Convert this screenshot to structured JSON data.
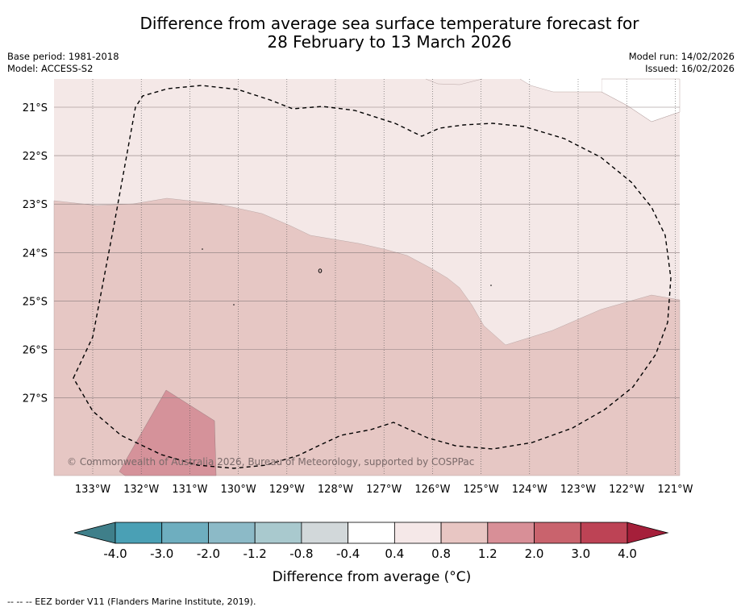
{
  "title_line1": "Difference from average sea surface temperature forecast for",
  "title_line2": "28 February to 13 March 2026",
  "base_period": "Base period: 1981-2018",
  "model": "Model: ACCESS-S2",
  "model_run": "Model run: 14/02/2026",
  "issued": "Issued: 16/02/2026",
  "copyright": "© Commonwealth of Australia 2026, Bureau of Meteorology, supported by COSPPac",
  "lon_labels": [
    "133°W",
    "132°W",
    "131°W",
    "130°W",
    "129°W",
    "128°W",
    "127°W",
    "126°W",
    "125°W",
    "124°W",
    "123°W",
    "122°W",
    "121°W"
  ],
  "lat_labels": [
    "21°S",
    "22°S",
    "23°S",
    "24°S",
    "25°S",
    "26°S",
    "27°S"
  ],
  "colorbar": {
    "label": "Difference from average (°C)",
    "ticks": [
      "-4.0",
      "-3.0",
      "-2.0",
      "-1.2",
      "-0.8",
      "-0.4",
      "0.4",
      "0.8",
      "1.2",
      "2.0",
      "3.0",
      "4.0"
    ],
    "colors": [
      "#4aa0b5",
      "#6eaebf",
      "#8cbac7",
      "#a9c9ce",
      "#d2d8da",
      "#ffffff",
      "#f5e8e8",
      "#e8c6c3",
      "#d88f97",
      "#c9636d",
      "#bd4355"
    ],
    "under_color": "#3f7f8a",
    "over_color": "#a51f3a"
  },
  "map_colors": {
    "light": "#f4e8e7",
    "medium": "#e6c7c4",
    "strong": "#d5929a"
  },
  "footer": "--  --  -- EEZ border V11 (Flanders Marine Institute, 2019)."
}
